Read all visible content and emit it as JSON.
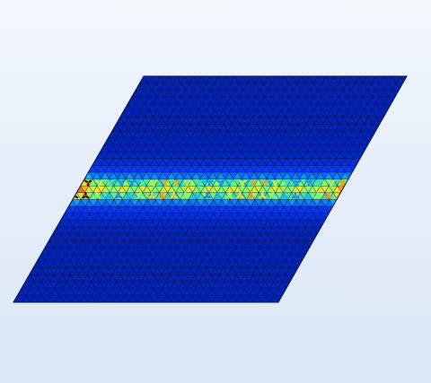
{
  "viewport": {
    "background_top": "#f3f7fc",
    "background_bottom": "#dbe7f6"
  },
  "plot": {
    "lattice": "triangular",
    "base_color": "#0a1c7a",
    "edge_color": "#05103f",
    "colormap": [
      "#000c6e",
      "#0a3cff",
      "#16c4e8",
      "#8bff6b",
      "#ffe12a",
      "#ff3b00",
      "#7a0000"
    ],
    "rows": 33,
    "cols": 32
  }
}
